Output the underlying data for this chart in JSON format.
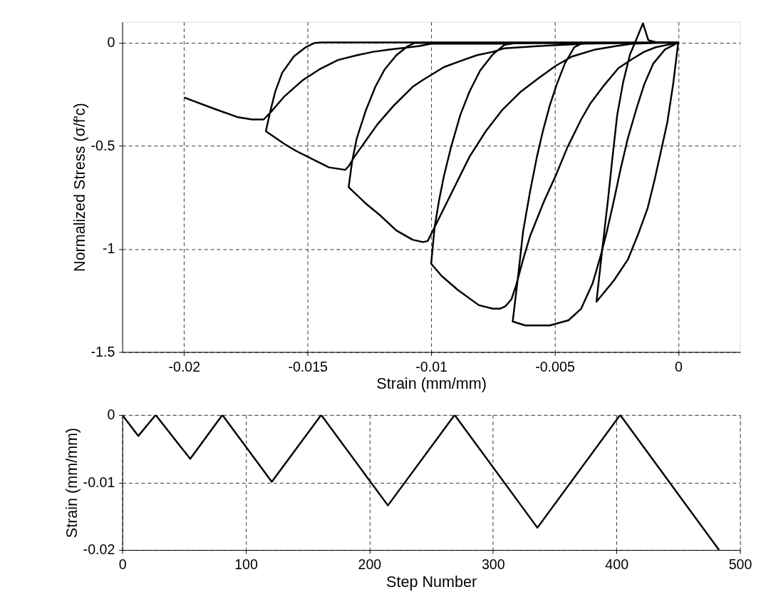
{
  "chart_data": [
    {
      "type": "line",
      "xlabel": "Strain (mm/mm)",
      "ylabel": "Normalized Stress (σ/f'c)",
      "xlim": [
        -0.0225,
        0.0025
      ],
      "ylim": [
        -1.5,
        0.1
      ],
      "xticks": [
        -0.02,
        -0.015,
        -0.01,
        -0.005,
        0
      ],
      "yticks": [
        -1.5,
        -1,
        -0.5,
        0
      ],
      "grid": true,
      "series": [
        {
          "color": "#000000",
          "x": [
            0,
            -0.00021,
            -0.00044,
            -0.00073,
            -0.00096,
            -0.00124,
            -0.00162,
            -0.00204,
            -0.00261,
            -0.00331,
            -0.00308,
            -0.00284,
            -0.00266,
            -0.00247,
            -0.00223,
            -0.00195,
            -0.00167,
            -0.00143,
            -0.00121,
            -0.00091,
            0,
            -0.00054,
            -0.00101,
            -0.00138,
            -0.00171,
            -0.00204,
            -0.00233,
            -0.00261,
            -0.00289,
            -0.00313,
            -0.00346,
            -0.00393,
            -0.00444,
            -0.0052,
            -0.00619,
            -0.0067,
            -0.00647,
            -0.00628,
            -0.006,
            -0.00572,
            -0.00548,
            -0.0052,
            -0.00492,
            -0.00459,
            -0.00421,
            -0.00393,
            0,
            -0.00091,
            -0.00138,
            -0.00185,
            -0.00242,
            -0.00298,
            -0.00355,
            -0.00393,
            -0.00449,
            -0.00496,
            -0.00543,
            -0.006,
            -0.00628,
            -0.00656,
            -0.00675,
            -0.00699,
            -0.00722,
            -0.0075,
            -0.00807,
            -0.00892,
            -0.00958,
            -0.01,
            -0.00986,
            -0.00967,
            -0.00948,
            -0.0092,
            -0.00882,
            -0.00845,
            -0.00802,
            -0.0075,
            -0.00703,
            -0.00656,
            0,
            -0.00091,
            -0.00185,
            -0.00251,
            -0.00336,
            -0.0043,
            -0.00496,
            -0.00562,
            -0.00637,
            -0.00713,
            -0.00779,
            -0.00845,
            -0.0092,
            -0.00976,
            -0.01014,
            -0.01033,
            -0.01075,
            -0.01141,
            -0.01207,
            -0.01264,
            -0.01334,
            -0.0132,
            -0.01301,
            -0.01264,
            -0.01226,
            -0.01188,
            -0.01141,
            -0.01094,
            -0.01066,
            0,
            -0.00091,
            -0.00374,
            -0.00562,
            -0.00703,
            -0.0075,
            -0.00816,
            -0.00882,
            -0.00948,
            -0.01033,
            -0.01075,
            -0.01151,
            -0.01217,
            -0.01264,
            -0.01311,
            -0.01334,
            -0.01348,
            -0.01414,
            -0.01499,
            -0.01546,
            -0.01593,
            -0.01669,
            -0.0165,
            -0.01631,
            -0.01603,
            -0.01556,
            -0.01508,
            -0.01471,
            -0.01443,
            0,
            -0.01,
            -0.01047,
            -0.01169,
            -0.01235,
            -0.01301,
            -0.01377,
            -0.01452,
            -0.01518,
            -0.01593,
            -0.0165,
            -0.01678,
            -0.01725,
            -0.01782,
            -0.01876,
            -0.02
          ],
          "values": [
            0,
            -0.204,
            -0.385,
            -0.543,
            -0.667,
            -0.803,
            -0.928,
            -1.052,
            -1.154,
            -1.256,
            -1.007,
            -0.758,
            -0.554,
            -0.351,
            -0.192,
            -0.057,
            0.023,
            0.093,
            0.011,
            0.002,
            0,
            -0.034,
            -0.102,
            -0.204,
            -0.328,
            -0.464,
            -0.611,
            -0.769,
            -0.916,
            -1.029,
            -1.165,
            -1.29,
            -1.346,
            -1.371,
            -1.371,
            -1.352,
            -1.12,
            -0.916,
            -0.724,
            -0.554,
            -0.43,
            -0.305,
            -0.204,
            -0.102,
            -0.023,
            -0.006,
            0,
            -0.023,
            -0.045,
            -0.079,
            -0.124,
            -0.204,
            -0.294,
            -0.373,
            -0.509,
            -0.645,
            -0.769,
            -0.939,
            -1.052,
            -1.176,
            -1.244,
            -1.278,
            -1.29,
            -1.29,
            -1.273,
            -1.199,
            -1.131,
            -1.072,
            -0.894,
            -0.758,
            -0.645,
            -0.509,
            -0.351,
            -0.238,
            -0.136,
            -0.057,
            -0.011,
            -0.002,
            0,
            -0.002,
            -0.006,
            -0.017,
            -0.034,
            -0.068,
            -0.113,
            -0.17,
            -0.238,
            -0.328,
            -0.43,
            -0.554,
            -0.735,
            -0.871,
            -0.962,
            -0.967,
            -0.956,
            -0.911,
            -0.837,
            -0.781,
            -0.701,
            -0.577,
            -0.464,
            -0.328,
            -0.215,
            -0.13,
            -0.062,
            -0.017,
            -0.002,
            0,
            0,
            -0.006,
            -0.017,
            -0.028,
            -0.045,
            -0.062,
            -0.09,
            -0.119,
            -0.181,
            -0.215,
            -0.305,
            -0.396,
            -0.475,
            -0.554,
            -0.6,
            -0.617,
            -0.605,
            -0.554,
            -0.526,
            -0.492,
            -0.43,
            -0.328,
            -0.238,
            -0.147,
            -0.068,
            -0.023,
            -0.002,
            0,
            0,
            -0.006,
            -0.017,
            -0.034,
            -0.045,
            -0.062,
            -0.085,
            -0.13,
            -0.181,
            -0.26,
            -0.339,
            -0.373,
            -0.373,
            -0.362,
            -0.322,
            -0.266
          ]
        }
      ]
    },
    {
      "type": "line",
      "xlabel": "Step Number",
      "ylabel": "Strain (mm/mm)",
      "xlim": [
        0,
        500
      ],
      "ylim": [
        -0.02,
        0
      ],
      "xticks": [
        0,
        100,
        200,
        300,
        400,
        500
      ],
      "yticks": [
        -0.02,
        -0.01,
        0
      ],
      "grid": true,
      "series": [
        {
          "color": "#000000",
          "x": [
            0,
            13,
            27,
            55,
            81,
            121,
            161,
            215,
            269,
            336,
            403,
            483
          ],
          "values": [
            0,
            -0.0031,
            0,
            -0.0065,
            0,
            -0.0099,
            0,
            -0.0134,
            0,
            -0.0167,
            0,
            -0.02
          ]
        }
      ]
    }
  ]
}
